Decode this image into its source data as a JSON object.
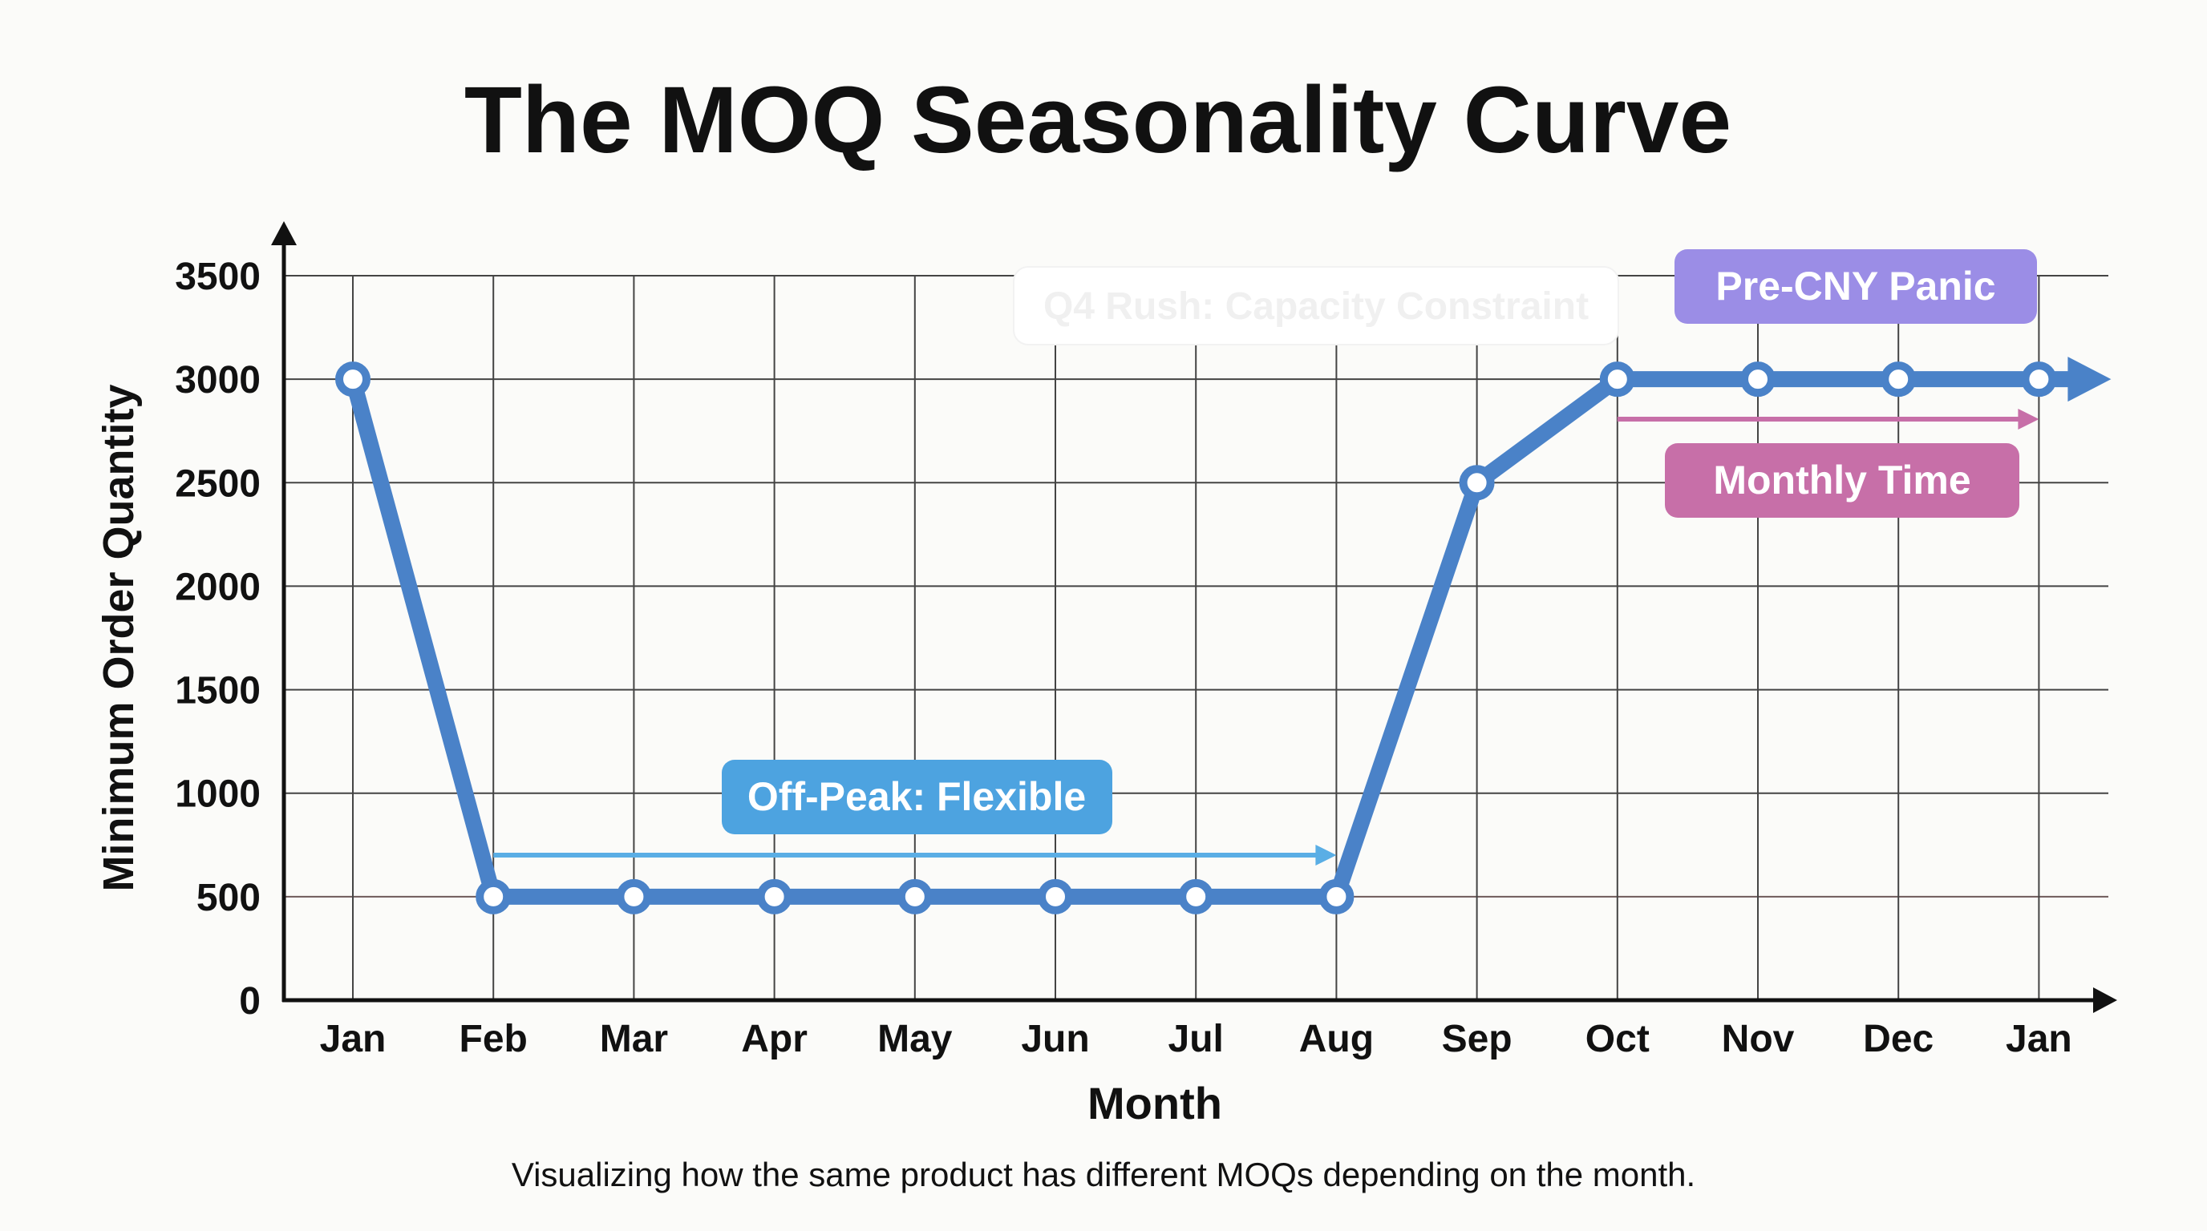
{
  "chart_data": {
    "type": "line",
    "title": "The MOQ Seasonality Curve",
    "subtitle": "Visualizing how the same product has different MOQs depending on the month.",
    "xlabel": "Month",
    "ylabel": "Minimum Order Quantity",
    "categories": [
      "Jan",
      "Feb",
      "Mar",
      "Apr",
      "May",
      "Jun",
      "Jul",
      "Aug",
      "Sep",
      "Oct",
      "Nov",
      "Dec",
      "Jan"
    ],
    "values": [
      3000,
      500,
      500,
      500,
      500,
      500,
      500,
      500,
      2500,
      3000,
      3000,
      3000,
      3000
    ],
    "yticks": [
      0,
      500,
      1000,
      1500,
      2000,
      2500,
      3000,
      3500
    ],
    "ylim": [
      0,
      3500
    ],
    "grid": true,
    "line_color": "#4a82c8",
    "annotations": [
      {
        "text": "Off-Peak: Flexible",
        "color": "#4da3e0",
        "arrow_from": "Feb",
        "arrow_to": "Aug"
      },
      {
        "text": "Q4 Rush: Capacity Constraint",
        "color": "#ffffff"
      },
      {
        "text": "Pre-CNY Panic",
        "color": "#9b8de6"
      },
      {
        "text": "Monthly Time",
        "color": "#c76fa8",
        "arrow_from": "Oct",
        "arrow_to": "Jan"
      }
    ]
  }
}
